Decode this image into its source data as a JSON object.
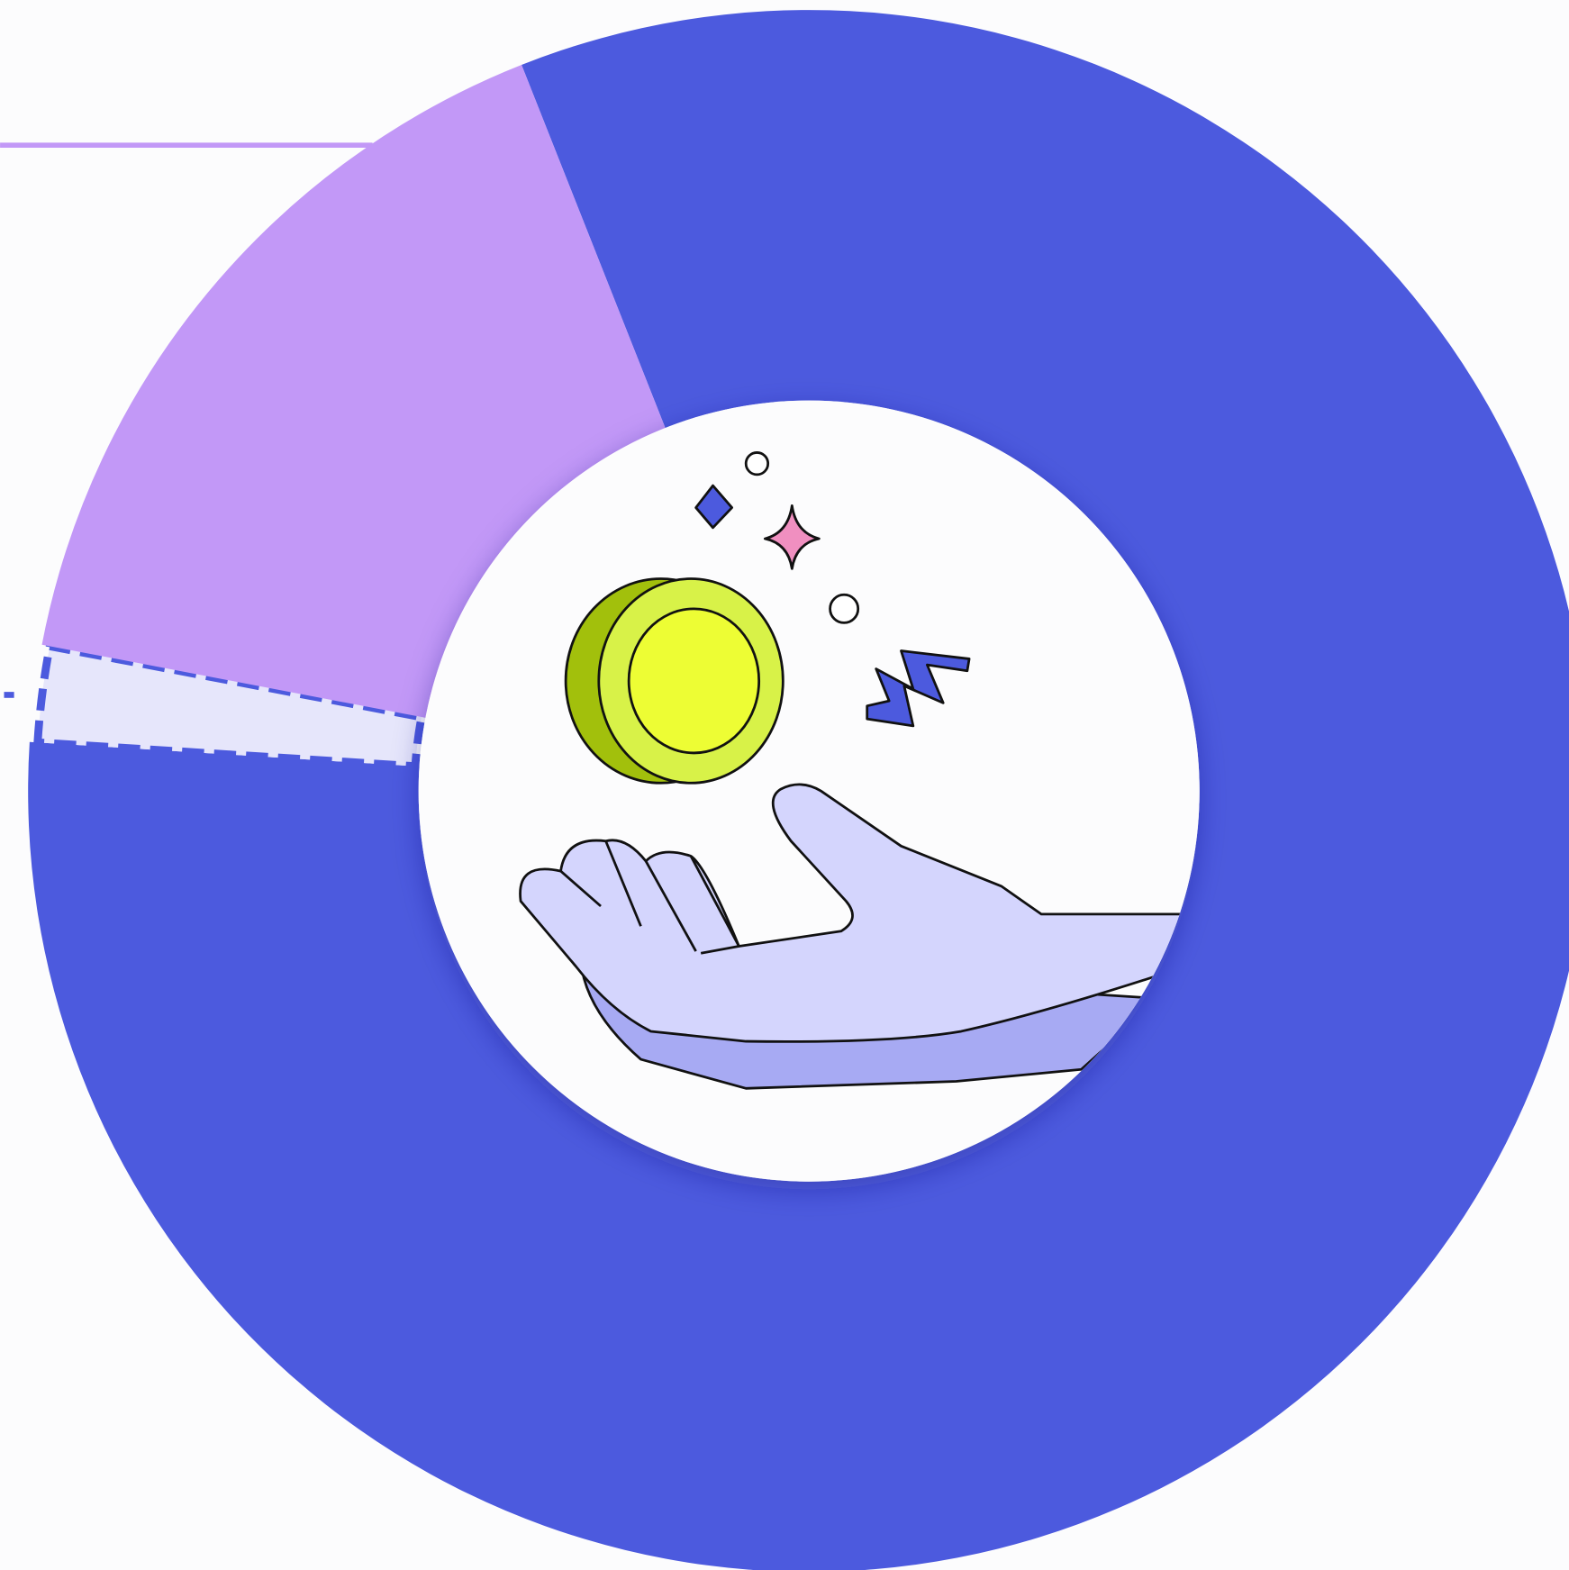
{
  "chart_data": {
    "type": "donut",
    "values": [
      82,
      2,
      16
    ],
    "colors": [
      "#4c5ade",
      "#e6e6fb",
      "#c298f7"
    ],
    "dashed": [
      false,
      true,
      false
    ]
  }
}
